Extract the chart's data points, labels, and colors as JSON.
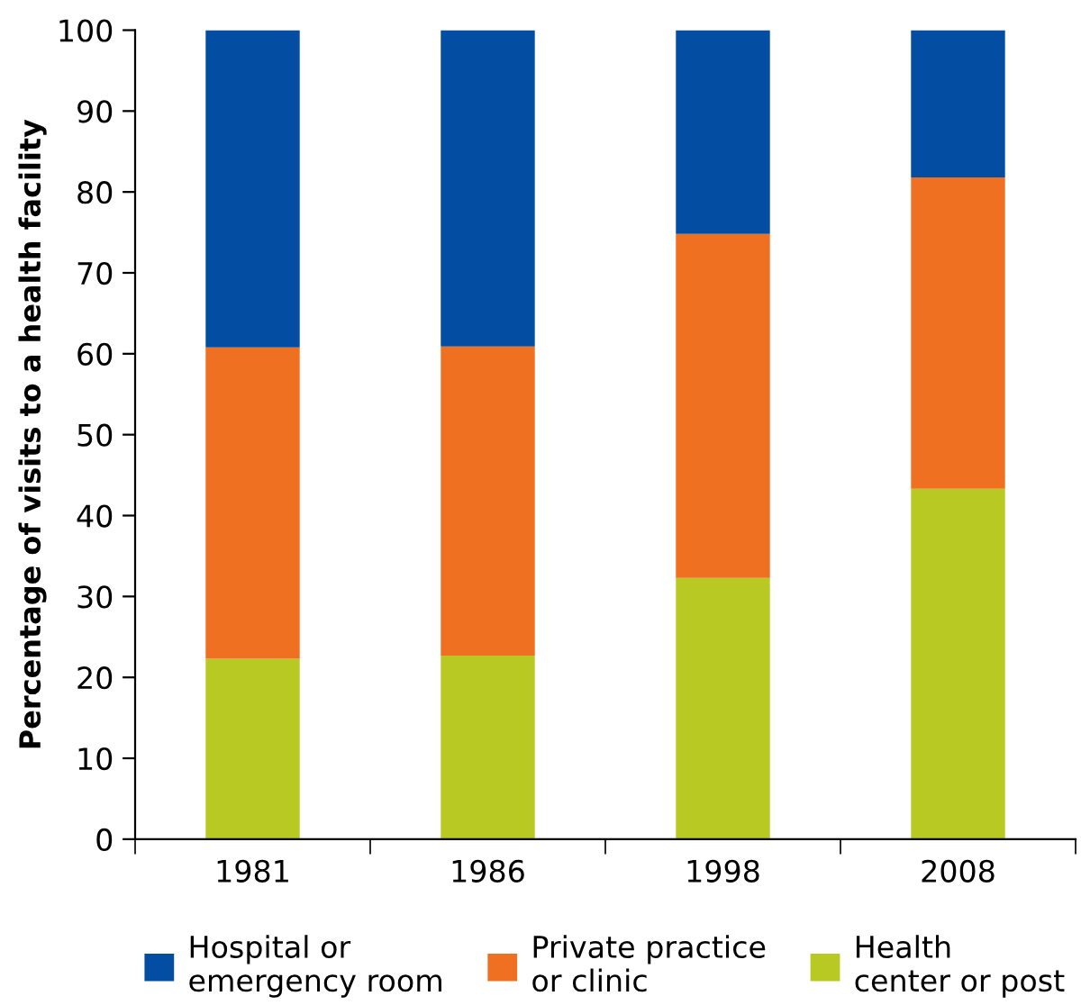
{
  "chart_data": {
    "type": "bar",
    "stacked": true,
    "ylabel": "Percentage of visits to a health facility",
    "categories": [
      "1981",
      "1986",
      "1998",
      "2008"
    ],
    "series": [
      {
        "name": "Health\ncenter or post",
        "color": "#b9c924",
        "values": [
          22.3,
          22.7,
          32.3,
          43.3
        ]
      },
      {
        "name": "Private practice\nor clinic",
        "color": "#f07022",
        "values": [
          38.5,
          38.2,
          42.5,
          38.5
        ]
      },
      {
        "name": "Hospital or\nemergency room",
        "color": "#034ea2",
        "values": [
          39.2,
          39.1,
          25.2,
          18.2
        ]
      }
    ],
    "ylim": [
      0,
      100
    ],
    "yticks": [
      0,
      10,
      20,
      30,
      40,
      50,
      60,
      70,
      80,
      90,
      100
    ],
    "grid": false,
    "legend": "bottom"
  }
}
